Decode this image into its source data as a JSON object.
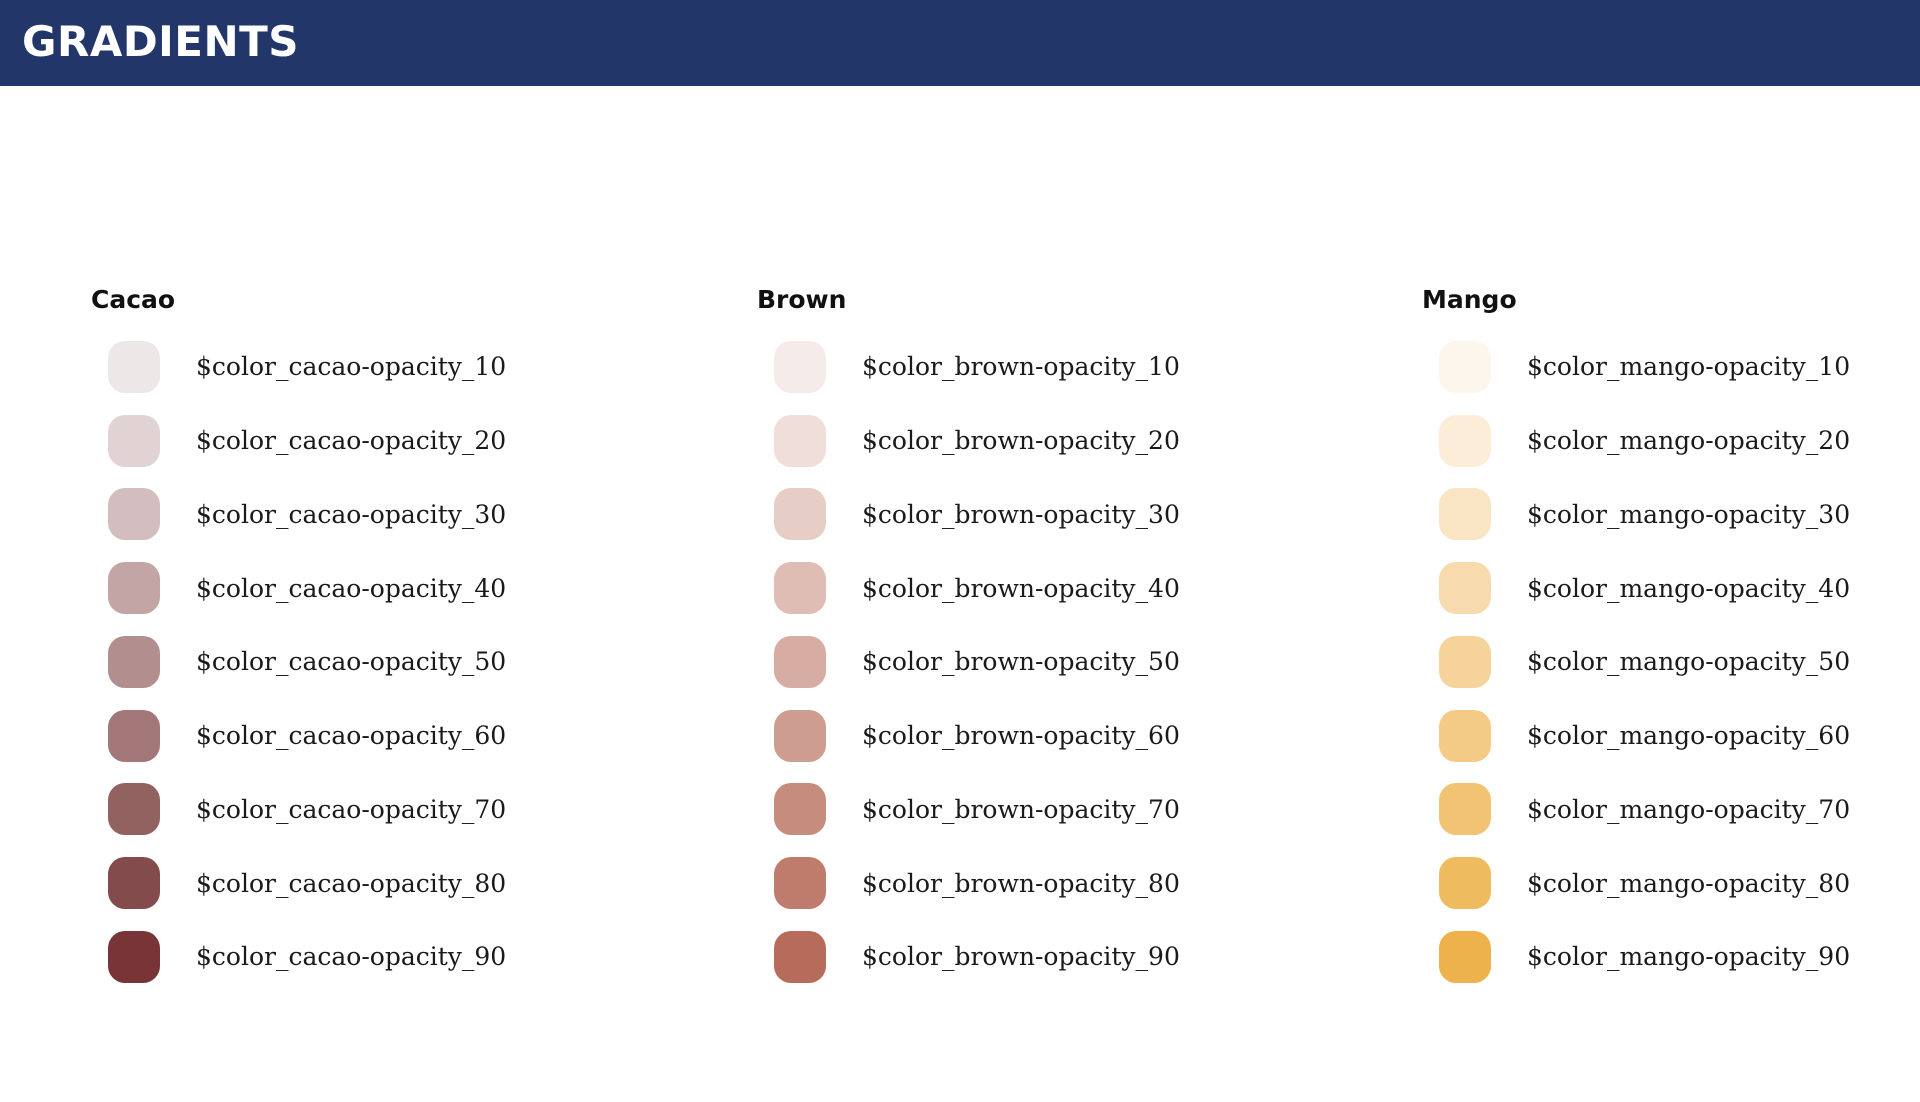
{
  "header": {
    "title": "GRADIENTS"
  },
  "groups": [
    {
      "title": "Cacao",
      "swatches": [
        {
          "label": "$color_cacao-opacity_10",
          "color": "#ede8e8"
        },
        {
          "label": "$color_cacao-opacity_20",
          "color": "#e1d3d4"
        },
        {
          "label": "$color_cacao-opacity_30",
          "color": "#d3bdbe"
        },
        {
          "label": "$color_cacao-opacity_40",
          "color": "#c3a5a6"
        },
        {
          "label": "$color_cacao-opacity_50",
          "color": "#b28f8e"
        },
        {
          "label": "$color_cacao-opacity_60",
          "color": "#a37777"
        },
        {
          "label": "$color_cacao-opacity_70",
          "color": "#926261"
        },
        {
          "label": "$color_cacao-opacity_80",
          "color": "#844b4c"
        },
        {
          "label": "$color_cacao-opacity_90",
          "color": "#783437"
        }
      ]
    },
    {
      "title": "Brown",
      "swatches": [
        {
          "label": "$color_brown-opacity_10",
          "color": "#f5ecea"
        },
        {
          "label": "$color_brown-opacity_20",
          "color": "#efded9"
        },
        {
          "label": "$color_brown-opacity_30",
          "color": "#e6cec7"
        },
        {
          "label": "$color_brown-opacity_40",
          "color": "#dfbdb5"
        },
        {
          "label": "$color_brown-opacity_50",
          "color": "#d7ada3"
        },
        {
          "label": "$color_brown-opacity_60",
          "color": "#ce9d91"
        },
        {
          "label": "$color_brown-opacity_70",
          "color": "#c68d7e"
        },
        {
          "label": "$color_brown-opacity_80",
          "color": "#bf7c6c"
        },
        {
          "label": "$color_brown-opacity_90",
          "color": "#b76c5b"
        }
      ]
    },
    {
      "title": "Mango",
      "swatches": [
        {
          "label": "$color_mango-opacity_10",
          "color": "#fdf6ec"
        },
        {
          "label": "$color_mango-opacity_20",
          "color": "#fcedd9"
        },
        {
          "label": "$color_mango-opacity_30",
          "color": "#f9e4c4"
        },
        {
          "label": "$color_mango-opacity_40",
          "color": "#f7dbae"
        },
        {
          "label": "$color_mango-opacity_50",
          "color": "#f5d39b"
        },
        {
          "label": "$color_mango-opacity_60",
          "color": "#f3ca86"
        },
        {
          "label": "$color_mango-opacity_70",
          "color": "#f1c372"
        },
        {
          "label": "$color_mango-opacity_80",
          "color": "#efbb5f"
        },
        {
          "label": "$color_mango-opacity_90",
          "color": "#edb24b"
        }
      ]
    }
  ]
}
